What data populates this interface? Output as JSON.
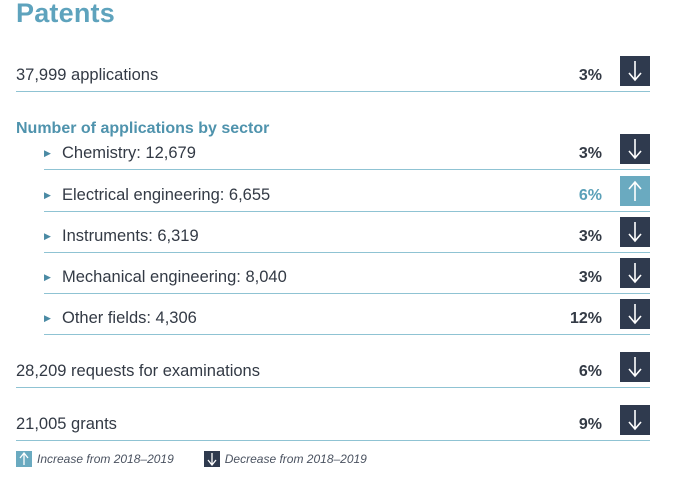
{
  "page": {
    "title": "Patents",
    "section_heading": "Number of applications by sector"
  },
  "rows": [
    {
      "label": "37,999  applications",
      "pct": "3%",
      "trend": "decrease"
    },
    {
      "label": "28,209 requests for examinations",
      "pct": "6%",
      "trend": "decrease"
    },
    {
      "label": "21,005  grants",
      "pct": "9%",
      "trend": "decrease"
    }
  ],
  "sectors": [
    {
      "label": "Chemistry: 12,679",
      "pct": "3%",
      "trend": "decrease"
    },
    {
      "label": "Electrical engineering: 6,655",
      "pct": "6%",
      "trend": "increase"
    },
    {
      "label": "Instruments: 6,319",
      "pct": "3%",
      "trend": "decrease"
    },
    {
      "label": "Mechanical engineering: 8,040",
      "pct": "3%",
      "trend": "decrease"
    },
    {
      "label": "Other fields: 4,306",
      "pct": "12%",
      "trend": "decrease"
    }
  ],
  "legend": {
    "increase": "Increase from 2018–2019",
    "decrease": "Decrease from 2018–2019"
  },
  "colors": {
    "title": "#5ea3bd",
    "decrease_box": "#2f3a4e",
    "increase_box": "#6aaac0",
    "rule": "#8fc3d3"
  },
  "icons": {
    "bullet": "triangle-right-icon",
    "increase": "arrow-up-icon",
    "decrease": "arrow-down-icon"
  }
}
